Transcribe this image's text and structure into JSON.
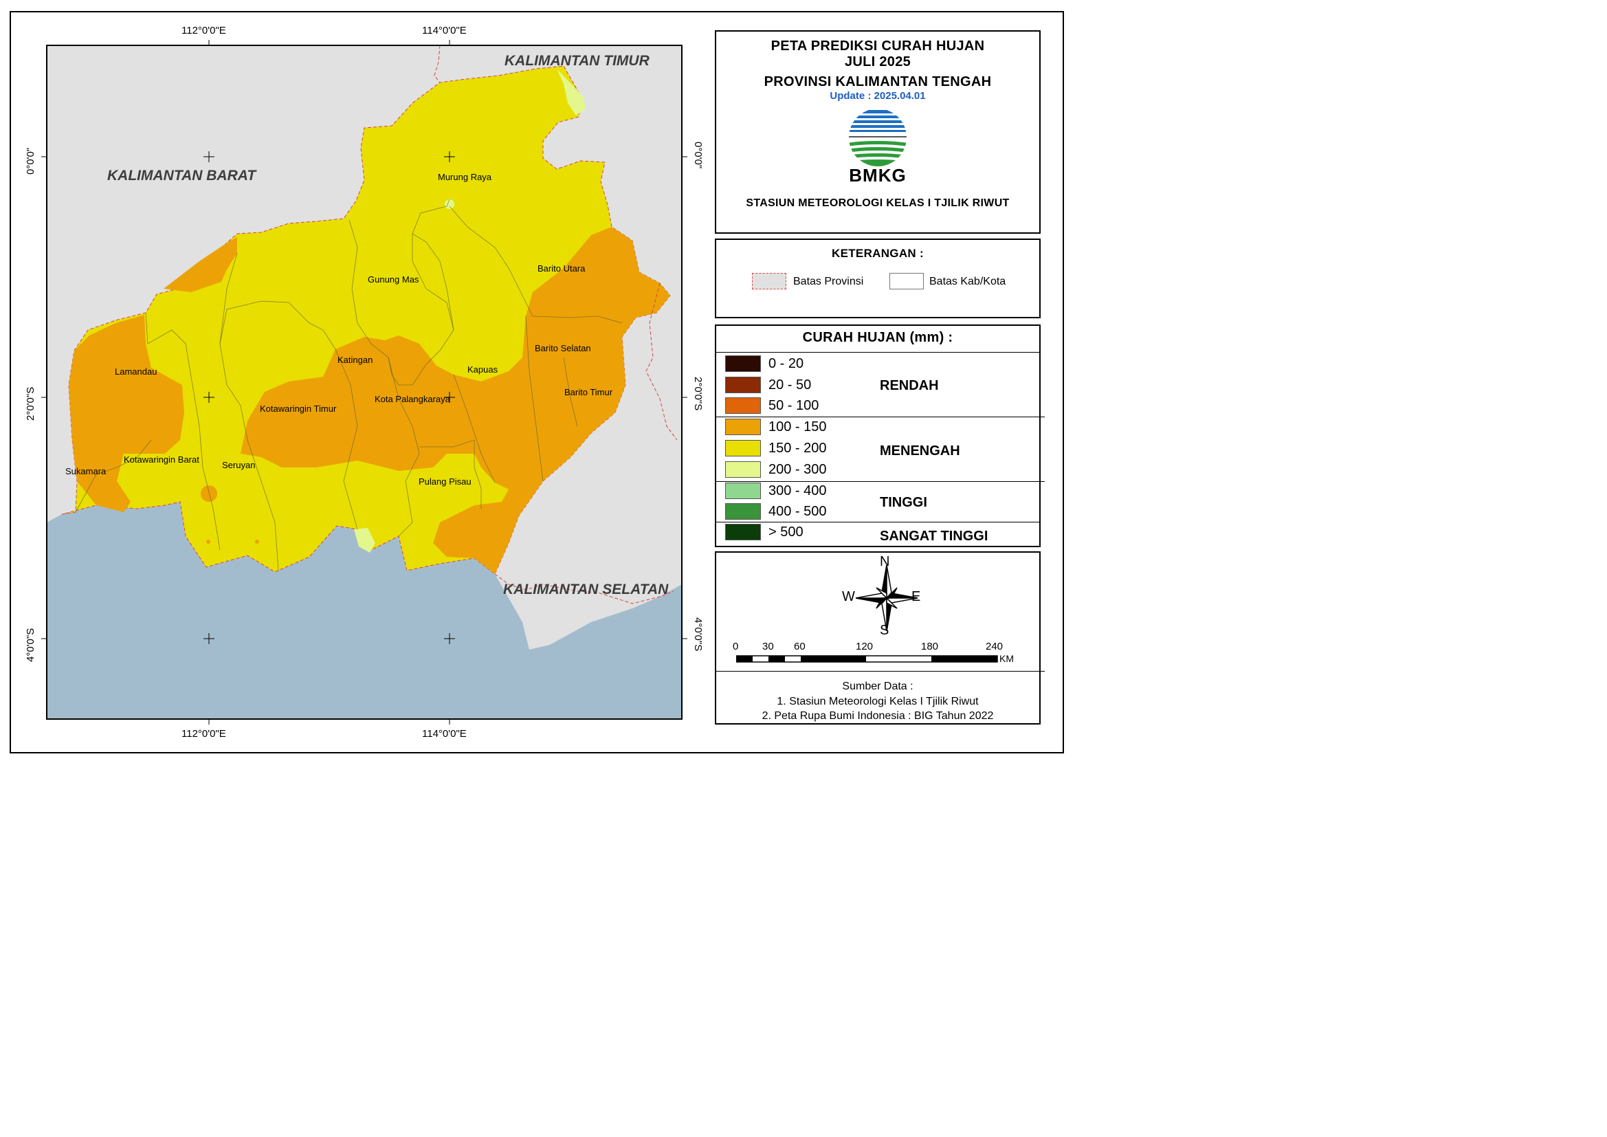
{
  "title": {
    "line1": "PETA PREDIKSI CURAH HUJAN",
    "line2": "JULI 2025",
    "line3": "PROVINSI KALIMANTAN TENGAH",
    "update": "Update : 2025.04.01",
    "logo_text": "BMKG",
    "station": "STASIUN METEOROLOGI KELAS I TJILIK RIWUT"
  },
  "keterangan": {
    "heading": "KETERANGAN :",
    "items": [
      {
        "label": "Batas Provinsi",
        "color": "#e1e1e1"
      },
      {
        "label": "Batas Kab/Kota",
        "color": "#ffffff"
      }
    ]
  },
  "curah_hujan": {
    "heading": "CURAH HUJAN (mm) :",
    "classes": [
      {
        "range": "0 - 20",
        "color": "#2b0a02"
      },
      {
        "range": "20 - 50",
        "color": "#8b2a05"
      },
      {
        "range": "50 - 100",
        "color": "#e0640a"
      },
      {
        "range": "100 - 150",
        "color": "#eca206"
      },
      {
        "range": "150  - 200",
        "color": "#e8df00"
      },
      {
        "range": "200 - 300",
        "color": "#e3f78c"
      },
      {
        "range": "300 - 400",
        "color": "#8fd68f"
      },
      {
        "range": "400 - 500",
        "color": "#3a943a"
      },
      {
        "range": "> 500",
        "color": "#0b3d0b"
      }
    ],
    "categories": [
      "RENDAH",
      "MENENGAH",
      "TINGGI",
      "SANGAT TINGGI"
    ]
  },
  "compass": {
    "n": "N",
    "s": "S",
    "e": "E",
    "w": "W"
  },
  "scale_bar": {
    "ticks": [
      "0",
      "30",
      "60",
      "120",
      "180",
      "240"
    ],
    "unit": "KM"
  },
  "sources": {
    "heading": "Sumber Data :",
    "line1": "1. Stasiun Meteorologi Kelas I Tjilik Riwut",
    "line2": "2. Peta Rupa Bumi Indonesia : BIG Tahun 2022"
  },
  "graticule": {
    "lon_top_1": "112°0'0\"E",
    "lon_top_2": "114°0'0\"E",
    "lon_bottom_1": "112°0'0\"E",
    "lon_bottom_2": "114°0'0\"E",
    "lat_1": "0°0'0\"",
    "lat_2": "2°0'0\"S",
    "lat_3": "4°0'0\"S"
  },
  "regions": {
    "kalbar": "KALIMANTAN BARAT",
    "kaltim": "KALIMANTAN TIMUR",
    "kalsel": "KALIMANTAN SELATAN"
  },
  "districts": [
    "Murung Raya",
    "Gunung Mas",
    "Barito Utara",
    "Katingan",
    "Kapuas",
    "Barito Selatan",
    "Lamandau",
    "Kota Palangkaraya",
    "Barito Timur",
    "Kotawaringin Timur",
    "Kotawaringin Barat",
    "Seruyan",
    "Sukamara",
    "Pulang Pisau"
  ],
  "map_colors": {
    "sea": "#a3bccd",
    "neighbor_land": "#e1e1e1",
    "province_border": "#d64545"
  }
}
